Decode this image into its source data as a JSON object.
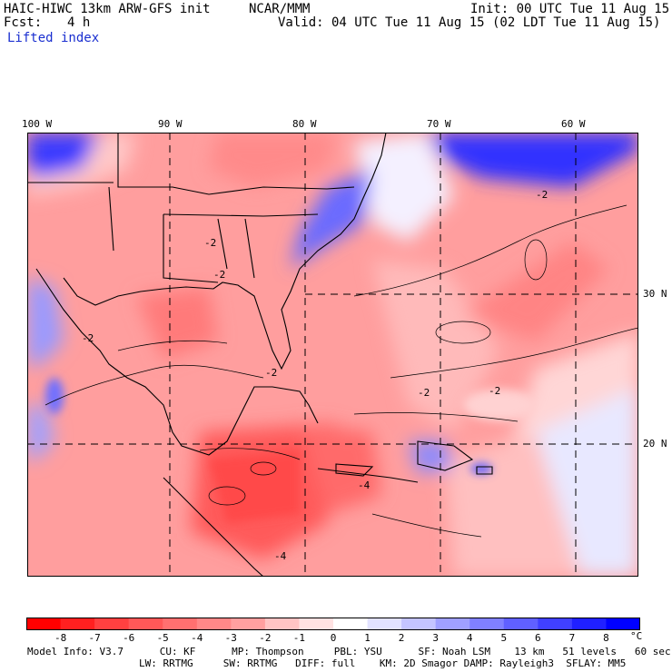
{
  "header": {
    "model_title": "HAIC-HIWC 13km ARW-GFS init",
    "org": "NCAR/MMM",
    "init": "Init: 00 UTC Tue 11 Aug 15",
    "fcst_label": "Fcst:",
    "fcst_value": "4 h",
    "valid": "Valid: 04 UTC Tue 11 Aug 15 (02 LDT Tue 11 Aug 15)",
    "field": "Lifted index"
  },
  "map": {
    "lon_labels": [
      "100 W",
      "90 W",
      "80 W",
      "70 W",
      "60 W"
    ],
    "lat_labels": [
      "30 N",
      "20 N"
    ],
    "contour_labels": [
      "-2",
      "-2",
      "-2",
      "-2",
      "-2",
      "-2",
      "-4",
      "-4",
      "-2"
    ]
  },
  "colorbar": {
    "ticks": [
      "-8",
      "-7",
      "-6",
      "-5",
      "-4",
      "-3",
      "-2",
      "-1",
      "0",
      "1",
      "2",
      "3",
      "4",
      "5",
      "6",
      "7",
      "8"
    ],
    "unit": "°C",
    "colors": [
      "#ff0000",
      "#ff2020",
      "#ff4040",
      "#ff5858",
      "#ff7070",
      "#ff8888",
      "#ffa0a0",
      "#ffc4c4",
      "#ffe2e2",
      "#ffffff",
      "#e2e2ff",
      "#c4c4ff",
      "#a0a0ff",
      "#8080ff",
      "#6060ff",
      "#4040ff",
      "#2020ff",
      "#0000ff"
    ]
  },
  "model_info": {
    "line1": "Model Info: V3.7      CU: KF      MP: Thompson     PBL: YSU      SF: Noah LSM    13 km   51 levels   60 sec",
    "line2": "LW: RRTMG     SW: RRTMG   DIFF: full    KM: 2D Smagor DAMP: Rayleigh3  SFLAY: MM5"
  }
}
